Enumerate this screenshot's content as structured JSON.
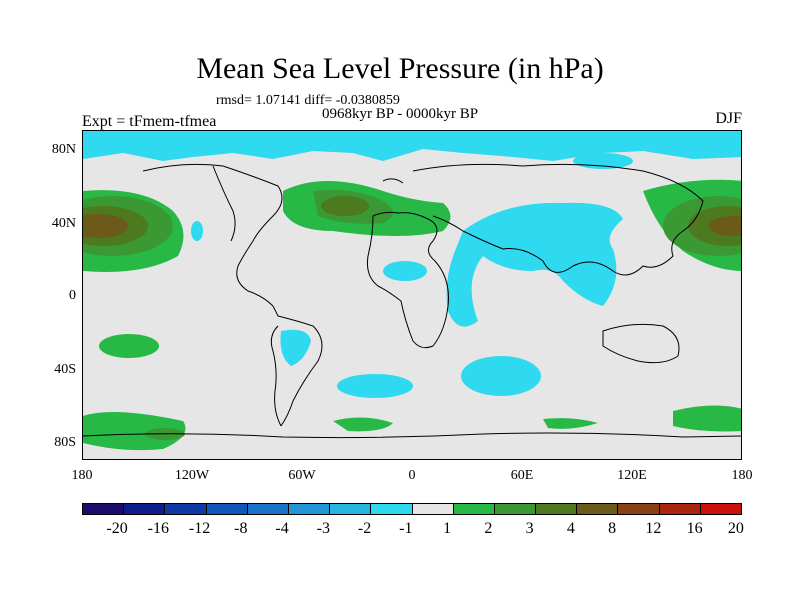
{
  "title": "Mean Sea Level Pressure (in hPa)",
  "stats": "rmsd= 1.07141 diff= -0.0380859",
  "period": "0968kyr BP - 0000kyr BP",
  "experiment": "Expt = tFmem-tfmea",
  "season": "DJF",
  "lat_labels": [
    "80N",
    "40N",
    "0",
    "40S",
    "80S"
  ],
  "lon_labels": [
    "180",
    "120W",
    "60W",
    "0",
    "60E",
    "120E",
    "180"
  ],
  "colorbar": {
    "labels": [
      "-20",
      "-16",
      "-12",
      "-8",
      "-4",
      "-3",
      "-2",
      "-1",
      "1",
      "2",
      "3",
      "4",
      "8",
      "12",
      "16",
      "20"
    ],
    "colors": [
      "#1a0d6e",
      "#0d1e8c",
      "#0f3aa3",
      "#1157b8",
      "#1a73c7",
      "#2395d6",
      "#27b4e0",
      "#2fd9ef",
      "#e6e6e6",
      "#28b846",
      "#3a9933",
      "#4d7a1f",
      "#6b5a1a",
      "#8a4014",
      "#a8260e",
      "#c8120a"
    ]
  }
}
